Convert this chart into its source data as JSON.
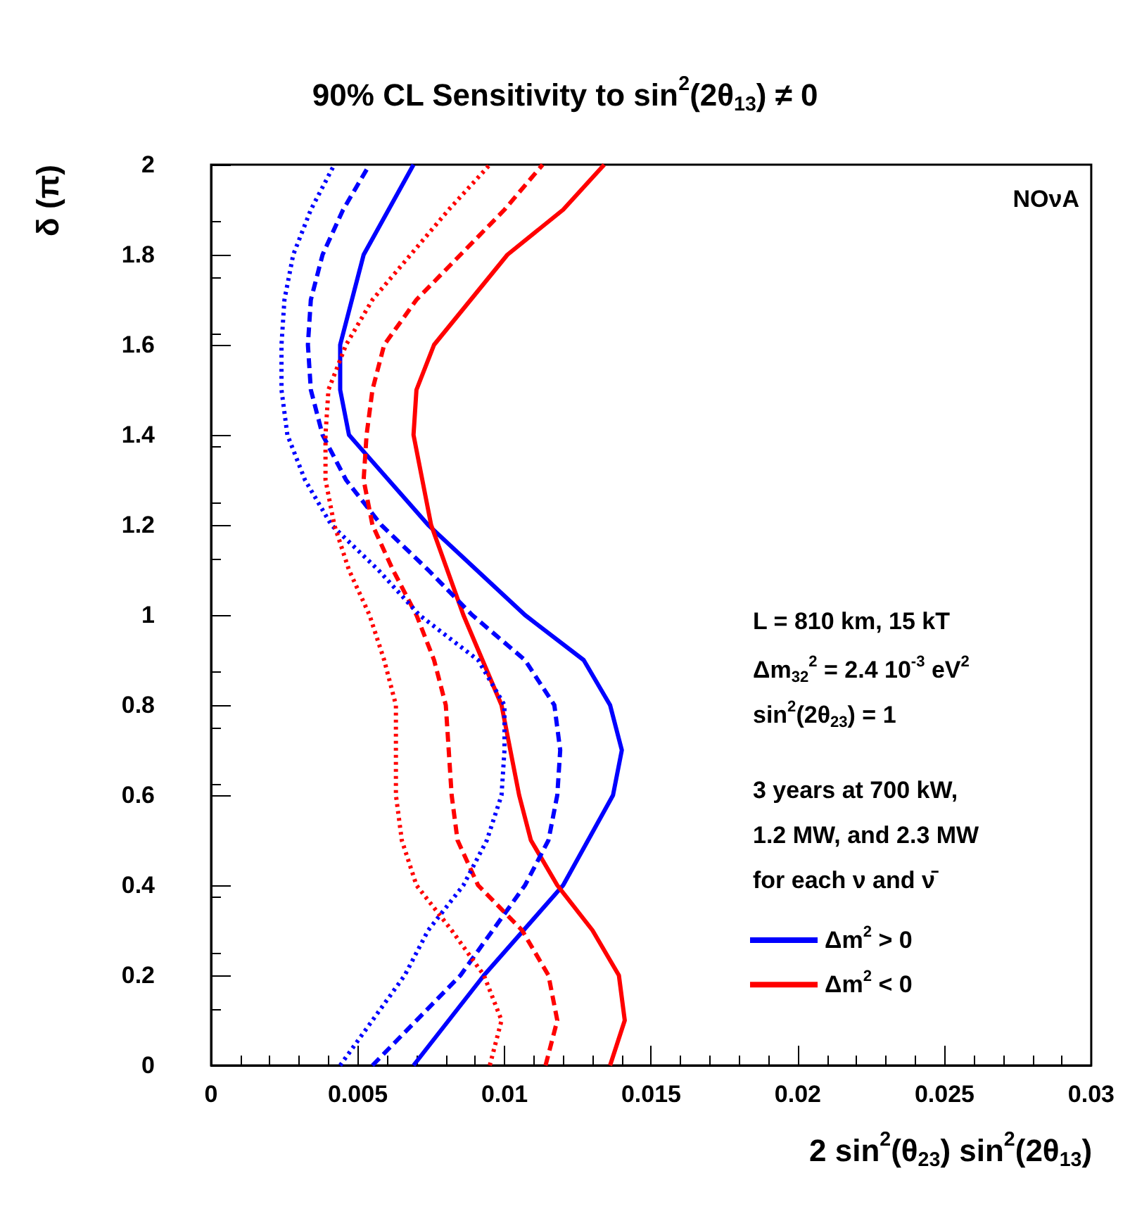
{
  "chart_data": {
    "type": "line",
    "title": "90% CL Sensitivity to sin$^{2}$(2θ$_{13}$) ≠ 0",
    "xlabel": "2 sin$^{2}$(θ$_{23}$) sin$^{2}$(2θ$_{13}$)",
    "ylabel": "δ (π)",
    "annotations": [
      "NOνA",
      "L = 810 km, 15 kT",
      "Δm$_{32}$$^{2}$ = 2.4 10$^{-3}$ eV$^{2}$",
      "sin$^{2}$(2θ$_{23}$) = 1",
      "3 years at 700 kW,",
      "1.2 MW, and 2.3 MW",
      "for each ν and ν̄"
    ],
    "xlim": [
      0,
      0.03
    ],
    "xticks": [
      0,
      0.005,
      0.01,
      0.015,
      0.02,
      0.025,
      0.03
    ],
    "ylim": [
      0,
      2
    ],
    "yticks": [
      0,
      0.2,
      0.4,
      0.6,
      0.8,
      1,
      1.2,
      1.4,
      1.6,
      1.8,
      2
    ],
    "grid": false,
    "legend": "bottom right",
    "marker": "none",
    "series": [
      {
        "name": "Δm$^{2}$ > 0",
        "color": "#0000ff",
        "line_style": "solid",
        "x": [
          0.0069,
          0.0093,
          0.012,
          0.0137,
          0.014,
          0.0136,
          0.0127,
          0.0107,
          0.0074,
          0.0047,
          0.0044,
          0.0044,
          0.0052,
          0.0069
        ],
        "values": [
          0,
          0.2,
          0.4,
          0.6,
          0.7,
          0.8,
          0.9,
          1,
          1.2,
          1.4,
          1.5,
          1.6,
          1.8,
          2
        ]
      },
      {
        "name": "Δm$^{2}$ < 0",
        "color": "#ff0000",
        "line_style": "solid",
        "x": [
          0.0136,
          0.0141,
          0.0139,
          0.013,
          0.0118,
          0.0109,
          0.0105,
          0.0099,
          0.0086,
          0.0075,
          0.0069,
          0.007,
          0.0076,
          0.0101,
          0.012,
          0.0134
        ],
        "values": [
          0,
          0.1,
          0.2,
          0.3,
          0.4,
          0.5,
          0.6,
          0.8,
          1,
          1.2,
          1.4,
          1.5,
          1.6,
          1.8,
          1.9,
          2
        ]
      },
      {
        "color": "#0000ff",
        "line_style": "dashed",
        "x": [
          0.0055,
          0.0085,
          0.0096,
          0.0107,
          0.0115,
          0.0118,
          0.0119,
          0.0117,
          0.0107,
          0.0089,
          0.0074,
          0.0058,
          0.0046,
          0.0038,
          0.0034,
          0.0033,
          0.0034,
          0.0038,
          0.0045,
          0.0054
        ],
        "values": [
          0,
          0.2,
          0.3,
          0.4,
          0.5,
          0.6,
          0.7,
          0.8,
          0.9,
          1,
          1.1,
          1.2,
          1.3,
          1.4,
          1.5,
          1.6,
          1.7,
          1.8,
          1.9,
          2
        ]
      },
      {
        "color": "#ff0000",
        "line_style": "dashed",
        "x": [
          0.0114,
          0.0118,
          0.0115,
          0.0106,
          0.0091,
          0.0084,
          0.0082,
          0.008,
          0.0076,
          0.007,
          0.0062,
          0.0055,
          0.0052,
          0.0053,
          0.0055,
          0.0059,
          0.007,
          0.0085,
          0.01,
          0.0113
        ],
        "values": [
          0,
          0.1,
          0.2,
          0.3,
          0.4,
          0.5,
          0.6,
          0.8,
          0.9,
          1,
          1.1,
          1.2,
          1.3,
          1.4,
          1.5,
          1.6,
          1.7,
          1.8,
          1.9,
          2
        ]
      },
      {
        "color": "#0000ff",
        "line_style": "dotted",
        "x": [
          0.0044,
          0.0066,
          0.0074,
          0.0086,
          0.0094,
          0.0099,
          0.01,
          0.01,
          0.0091,
          0.0071,
          0.0057,
          0.0041,
          0.0032,
          0.0026,
          0.0024,
          0.0024,
          0.0025,
          0.0028,
          0.0034,
          0.0042
        ],
        "values": [
          0,
          0.2,
          0.3,
          0.4,
          0.5,
          0.6,
          0.7,
          0.8,
          0.9,
          1,
          1.1,
          1.2,
          1.3,
          1.4,
          1.5,
          1.6,
          1.7,
          1.8,
          1.9,
          2
        ]
      },
      {
        "color": "#ff0000",
        "line_style": "dotted",
        "x": [
          0.0095,
          0.0099,
          0.0093,
          0.0082,
          0.007,
          0.0065,
          0.0063,
          0.0063,
          0.0059,
          0.0054,
          0.0047,
          0.0042,
          0.0039,
          0.0039,
          0.004,
          0.0046,
          0.0055,
          0.0068,
          0.0081,
          0.0095
        ],
        "values": [
          0,
          0.1,
          0.2,
          0.3,
          0.4,
          0.5,
          0.6,
          0.8,
          0.9,
          1,
          1.1,
          1.2,
          1.3,
          1.4,
          1.5,
          1.6,
          1.7,
          1.8,
          1.9,
          2
        ]
      }
    ]
  }
}
